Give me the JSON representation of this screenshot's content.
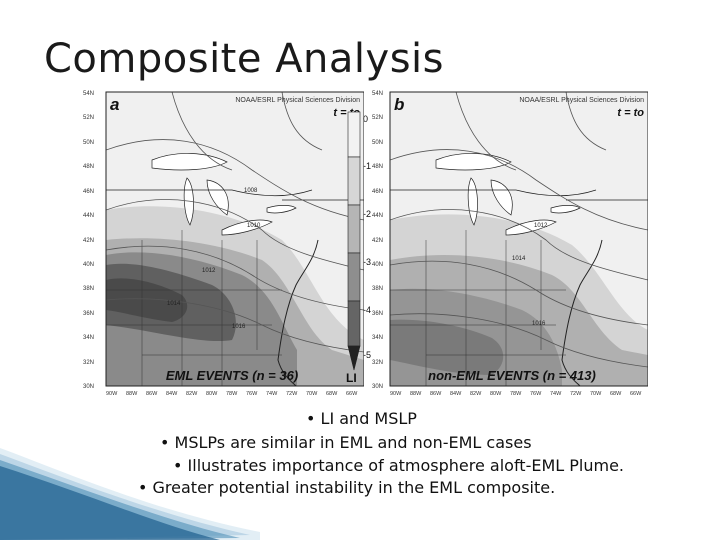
{
  "slide": {
    "title": "Composite Analysis",
    "bullets": [
      "• LI and MSLP",
      "• MSLPs are similar in EML and non-EML cases",
      "• Illustrates importance of atmosphere aloft-EML Plume.",
      "• Greater potential instability in the EML composite."
    ]
  },
  "figure": {
    "panel_a": {
      "letter": "a",
      "credit": "NOAA/ESRL Physical Sciences Division",
      "time_label": "t = to",
      "caption": "EML EVENTS (n = 36)",
      "isobar_labels": [
        "1008",
        "1010",
        "1012",
        "1014",
        "1016"
      ]
    },
    "panel_b": {
      "letter": "b",
      "credit": "NOAA/ESRL Physical Sciences Division",
      "time_label": "t = to",
      "caption": "non-EML EVENTS (n = 413)",
      "isobar_labels": [
        "1012",
        "1014",
        "1016"
      ]
    },
    "lat_labels": [
      "54N",
      "52N",
      "50N",
      "48N",
      "46N",
      "44N",
      "42N",
      "40N",
      "38N",
      "36N",
      "34N",
      "32N",
      "30N"
    ],
    "lon_labels": [
      "90W",
      "88W",
      "86W",
      "84W",
      "82W",
      "80W",
      "78W",
      "76W",
      "74W",
      "72W",
      "70W",
      "68W",
      "66W"
    ],
    "colorbar": {
      "title": "LI",
      "ticks": [
        "0",
        "-1",
        "-2",
        "-3",
        "-4",
        "-5"
      ],
      "colors": [
        "#f2f2f2",
        "#d6d6d6",
        "#b5b5b5",
        "#8e8e8e",
        "#656565",
        "#222222"
      ]
    }
  }
}
